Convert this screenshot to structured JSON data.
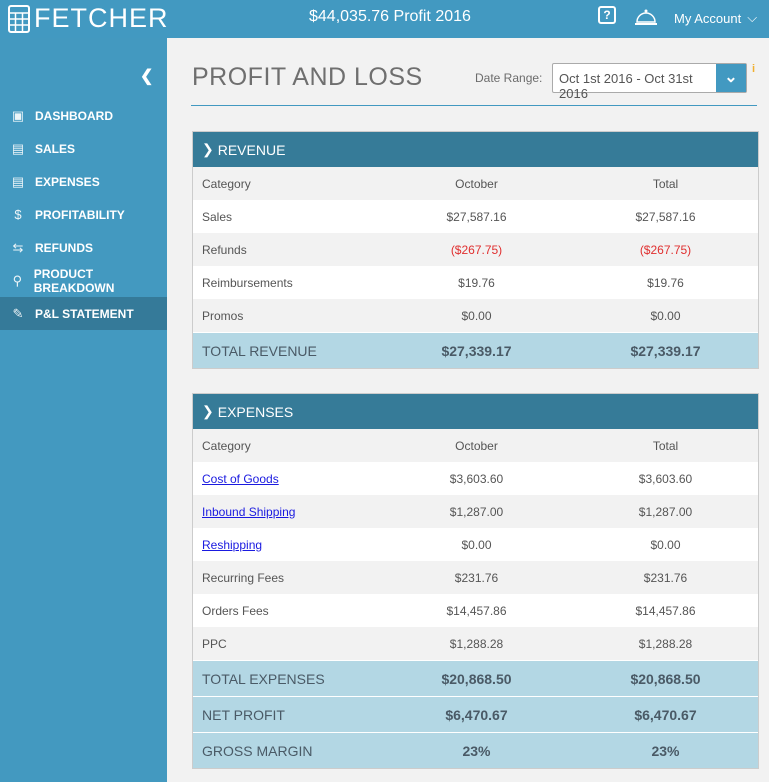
{
  "header": {
    "brand": "FETCHER",
    "profit_summary": "$44,035.76 Profit 2016",
    "account": "My Account"
  },
  "sidebar": {
    "items": [
      {
        "label": "DASHBOARD",
        "icon": "presentation-icon"
      },
      {
        "label": "SALES",
        "icon": "chart-up-icon"
      },
      {
        "label": "EXPENSES",
        "icon": "chart-down-icon"
      },
      {
        "label": "PROFITABILITY",
        "icon": "money-plant-icon"
      },
      {
        "label": "REFUNDS",
        "icon": "refund-icon"
      },
      {
        "label": "PRODUCT BREAKDOWN",
        "icon": "magnifier-icon"
      },
      {
        "label": "P&L STATEMENT",
        "icon": "document-icon",
        "active": true
      }
    ]
  },
  "page": {
    "title": "PROFIT AND LOSS",
    "date_range_label": "Date Range:",
    "date_range": "Oct 1st 2016 - Oct 31st 2016"
  },
  "revenue": {
    "title": "REVENUE",
    "headers": [
      "Category",
      "October",
      "Total"
    ],
    "rows": [
      [
        "Sales",
        "$27,587.16",
        "$27,587.16"
      ],
      [
        "Refunds",
        "($267.75)",
        "($267.75)"
      ],
      [
        "Reimbursements",
        "$19.76",
        "$19.76"
      ],
      [
        "Promos",
        "$0.00",
        "$0.00"
      ]
    ],
    "total": [
      "TOTAL REVENUE",
      "$27,339.17",
      "$27,339.17"
    ]
  },
  "expenses": {
    "title": "EXPENSES",
    "headers": [
      "Category",
      "October",
      "Total"
    ],
    "rows": [
      [
        "Cost of Goods",
        "$3,603.60",
        "$3,603.60"
      ],
      [
        "Inbound Shipping",
        "$1,287.00",
        "$1,287.00"
      ],
      [
        "Reshipping",
        "$0.00",
        "$0.00"
      ],
      [
        "Recurring Fees",
        "$231.76",
        "$231.76"
      ],
      [
        "Orders Fees",
        "$14,457.86",
        "$14,457.86"
      ],
      [
        "PPC",
        "$1,288.28",
        "$1,288.28"
      ]
    ],
    "totals": [
      [
        "TOTAL EXPENSES",
        "$20,868.50",
        "$20,868.50"
      ],
      [
        "NET PROFIT",
        "$6,470.67",
        "$6,470.67"
      ],
      [
        "GROSS MARGIN",
        "23%",
        "23%"
      ]
    ]
  },
  "colors": {
    "header": "#4299c1",
    "panel_header": "#367b98",
    "total_row": "#b3d7e4",
    "negative": "#e03030",
    "link": "#1a1ae0"
  }
}
